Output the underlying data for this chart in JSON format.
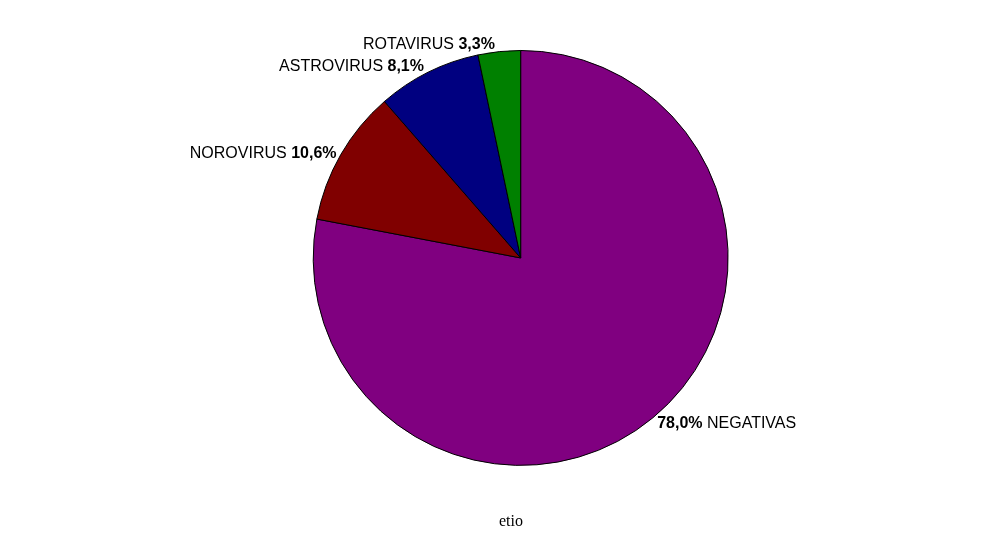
{
  "chart_data": {
    "type": "pie",
    "categories": [
      "NEGATIVAS",
      "NOROVIRUS",
      "ASTROVIRUS",
      "ROTAVIRUS"
    ],
    "values": [
      78.0,
      10.6,
      8.1,
      3.3
    ],
    "colors": [
      "#800080",
      "#800000",
      "#000080",
      "#008000"
    ],
    "value_labels": [
      "78,0%",
      "10,6%",
      "8,1%",
      "3,3%"
    ],
    "annotations": [
      "etio"
    ],
    "legend": false
  }
}
